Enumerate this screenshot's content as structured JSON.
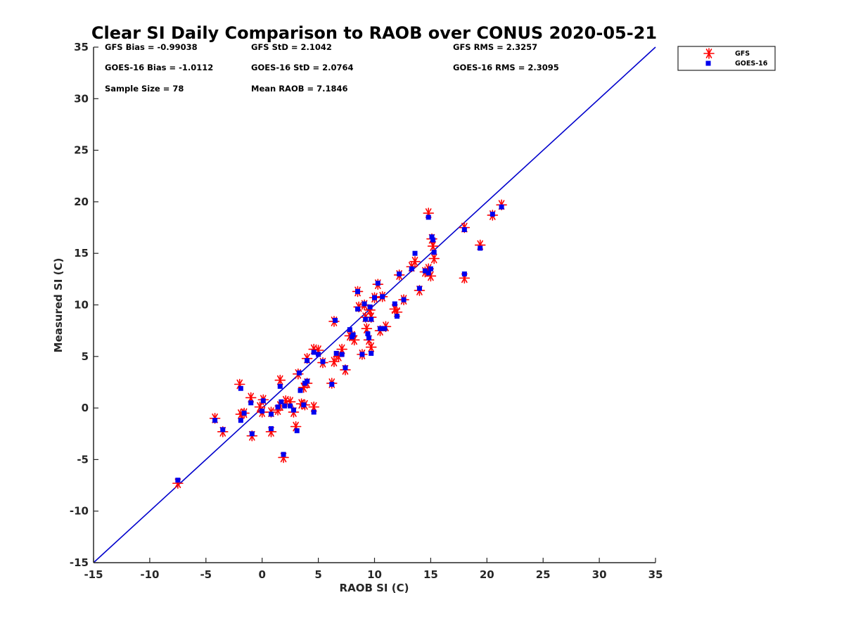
{
  "chart_data": {
    "type": "scatter",
    "title": "Clear SI Daily Comparison to RAOB over CONUS 2020-05-21",
    "xlabel": "RAOB SI (C)",
    "ylabel": "Measured SI (C)",
    "xlim": [
      -15,
      35
    ],
    "ylim": [
      -15,
      35
    ],
    "xticks": [
      "-15",
      "-10",
      "-5",
      "0",
      "5",
      "10",
      "15",
      "20",
      "25",
      "30",
      "35"
    ],
    "yticks": [
      "-15",
      "-10",
      "-5",
      "0",
      "5",
      "10",
      "15",
      "20",
      "25",
      "30",
      "35"
    ],
    "grid": false,
    "legend_position": "outside-top-right",
    "stats": {
      "gfs_bias": "GFS Bias = -0.99038",
      "gfs_std": "GFS StD = 2.1042",
      "gfs_rms": "GFS RMS = 2.3257",
      "goes_bias": "GOES-16 Bias = -1.0112",
      "goes_std": "GOES-16 StD = 2.0764",
      "goes_rms": "GOES-16 RMS = 2.3095",
      "sample_size": "Sample Size = 78",
      "mean_raob": "Mean RAOB = 7.1846"
    },
    "reference_line": {
      "x": [
        -15,
        35
      ],
      "y": [
        -15,
        35
      ],
      "color": "#0000cc"
    },
    "series": [
      {
        "name": "GFS",
        "marker": "asterisk",
        "color": "#ff0000",
        "points": [
          [
            -7.5,
            -7.3
          ],
          [
            -4.2,
            -1.0
          ],
          [
            -3.5,
            -2.3
          ],
          [
            -2.0,
            2.3
          ],
          [
            -1.9,
            -0.6
          ],
          [
            -1.6,
            -0.5
          ],
          [
            -1.0,
            1.0
          ],
          [
            -0.9,
            -2.7
          ],
          [
            -0.2,
            0.1
          ],
          [
            0.0,
            -0.4
          ],
          [
            0.1,
            0.8
          ],
          [
            0.8,
            -0.4
          ],
          [
            0.8,
            -2.3
          ],
          [
            1.4,
            -0.2
          ],
          [
            1.6,
            2.7
          ],
          [
            1.6,
            0.2
          ],
          [
            1.9,
            -4.8
          ],
          [
            2.1,
            0.7
          ],
          [
            2.5,
            0.6
          ],
          [
            2.8,
            -0.4
          ],
          [
            3.0,
            -1.8
          ],
          [
            3.2,
            3.3
          ],
          [
            3.5,
            0.4
          ],
          [
            3.7,
            2.0
          ],
          [
            3.8,
            0.3
          ],
          [
            4.0,
            2.4
          ],
          [
            4.0,
            4.8
          ],
          [
            4.6,
            5.7
          ],
          [
            4.6,
            0.1
          ],
          [
            5.0,
            5.6
          ],
          [
            5.4,
            4.4
          ],
          [
            6.2,
            2.4
          ],
          [
            6.4,
            8.4
          ],
          [
            6.4,
            4.5
          ],
          [
            6.8,
            5.0
          ],
          [
            7.1,
            5.7
          ],
          [
            7.4,
            3.7
          ],
          [
            7.8,
            7.0
          ],
          [
            8.0,
            7.0
          ],
          [
            8.2,
            6.6
          ],
          [
            8.5,
            11.3
          ],
          [
            8.6,
            9.8
          ],
          [
            8.9,
            5.2
          ],
          [
            9.1,
            10.0
          ],
          [
            9.2,
            8.8
          ],
          [
            9.3,
            7.7
          ],
          [
            9.5,
            6.6
          ],
          [
            9.6,
            9.5
          ],
          [
            9.7,
            8.8
          ],
          [
            9.7,
            5.9
          ],
          [
            10.0,
            10.7
          ],
          [
            10.3,
            12.0
          ],
          [
            10.5,
            7.5
          ],
          [
            10.7,
            10.8
          ],
          [
            11.0,
            7.9
          ],
          [
            11.8,
            9.6
          ],
          [
            12.0,
            9.3
          ],
          [
            12.2,
            12.9
          ],
          [
            12.6,
            10.5
          ],
          [
            13.3,
            13.7
          ],
          [
            13.6,
            14.2
          ],
          [
            14.0,
            11.4
          ],
          [
            14.5,
            13.2
          ],
          [
            14.8,
            18.9
          ],
          [
            14.8,
            13.5
          ],
          [
            15.0,
            12.8
          ],
          [
            15.1,
            16.4
          ],
          [
            15.2,
            15.7
          ],
          [
            15.3,
            14.5
          ],
          [
            18.0,
            17.5
          ],
          [
            18.0,
            12.6
          ],
          [
            19.4,
            15.8
          ],
          [
            20.5,
            18.7
          ],
          [
            21.3,
            19.7
          ]
        ]
      },
      {
        "name": "GOES-16",
        "marker": "square",
        "color": "#0000ee",
        "points": [
          [
            -7.5,
            -7.0
          ],
          [
            -4.2,
            -1.2
          ],
          [
            -3.5,
            -2.1
          ],
          [
            -1.9,
            1.9
          ],
          [
            -1.9,
            -1.2
          ],
          [
            -1.6,
            -0.5
          ],
          [
            -1.0,
            0.5
          ],
          [
            -0.9,
            -2.5
          ],
          [
            0.0,
            -0.3
          ],
          [
            0.1,
            0.7
          ],
          [
            0.8,
            -0.6
          ],
          [
            0.8,
            -2.0
          ],
          [
            1.4,
            0.1
          ],
          [
            1.6,
            2.1
          ],
          [
            1.7,
            0.6
          ],
          [
            1.9,
            -4.5
          ],
          [
            2.0,
            0.2
          ],
          [
            2.5,
            0.2
          ],
          [
            2.8,
            -0.2
          ],
          [
            3.1,
            -2.2
          ],
          [
            3.3,
            3.4
          ],
          [
            3.4,
            1.7
          ],
          [
            3.7,
            0.3
          ],
          [
            3.8,
            2.4
          ],
          [
            4.0,
            2.6
          ],
          [
            4.0,
            4.6
          ],
          [
            4.6,
            5.4
          ],
          [
            4.6,
            -0.4
          ],
          [
            5.0,
            5.2
          ],
          [
            5.4,
            4.5
          ],
          [
            6.2,
            2.3
          ],
          [
            6.5,
            8.5
          ],
          [
            6.6,
            5.3
          ],
          [
            7.1,
            5.2
          ],
          [
            7.4,
            3.9
          ],
          [
            7.8,
            7.6
          ],
          [
            8.0,
            6.9
          ],
          [
            8.1,
            7.1
          ],
          [
            8.5,
            11.3
          ],
          [
            8.5,
            9.6
          ],
          [
            8.9,
            5.2
          ],
          [
            9.1,
            10.1
          ],
          [
            9.2,
            8.6
          ],
          [
            9.4,
            7.2
          ],
          [
            9.5,
            6.8
          ],
          [
            9.6,
            9.8
          ],
          [
            9.7,
            8.6
          ],
          [
            9.7,
            5.3
          ],
          [
            10.0,
            10.7
          ],
          [
            10.3,
            12.1
          ],
          [
            10.5,
            7.7
          ],
          [
            10.7,
            10.8
          ],
          [
            10.9,
            7.7
          ],
          [
            11.8,
            10.1
          ],
          [
            12.0,
            8.9
          ],
          [
            12.2,
            13.0
          ],
          [
            12.6,
            10.5
          ],
          [
            13.3,
            13.5
          ],
          [
            13.6,
            15.0
          ],
          [
            14.0,
            11.6
          ],
          [
            14.5,
            13.3
          ],
          [
            14.8,
            18.5
          ],
          [
            14.8,
            13.1
          ],
          [
            15.0,
            13.5
          ],
          [
            15.1,
            16.6
          ],
          [
            15.2,
            16.3
          ],
          [
            15.3,
            15.1
          ],
          [
            18.0,
            17.3
          ],
          [
            18.0,
            13.0
          ],
          [
            19.4,
            15.5
          ],
          [
            20.5,
            18.8
          ],
          [
            21.3,
            19.5
          ]
        ]
      }
    ]
  }
}
